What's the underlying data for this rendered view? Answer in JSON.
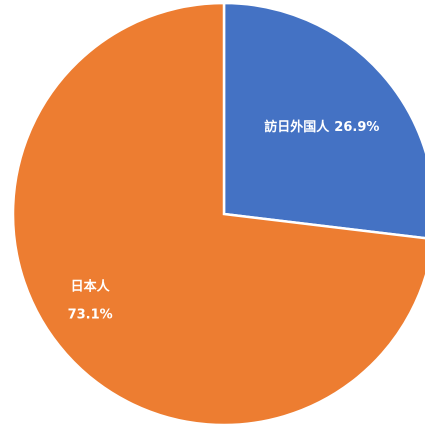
{
  "chart_data": {
    "type": "pie",
    "categories": [
      "訪日外国人",
      "日本人"
    ],
    "values": [
      26.9,
      73.1
    ],
    "value_labels": [
      "26.9%",
      "73.1%"
    ],
    "colors": [
      "#4472c4",
      "#ed7d31"
    ]
  }
}
